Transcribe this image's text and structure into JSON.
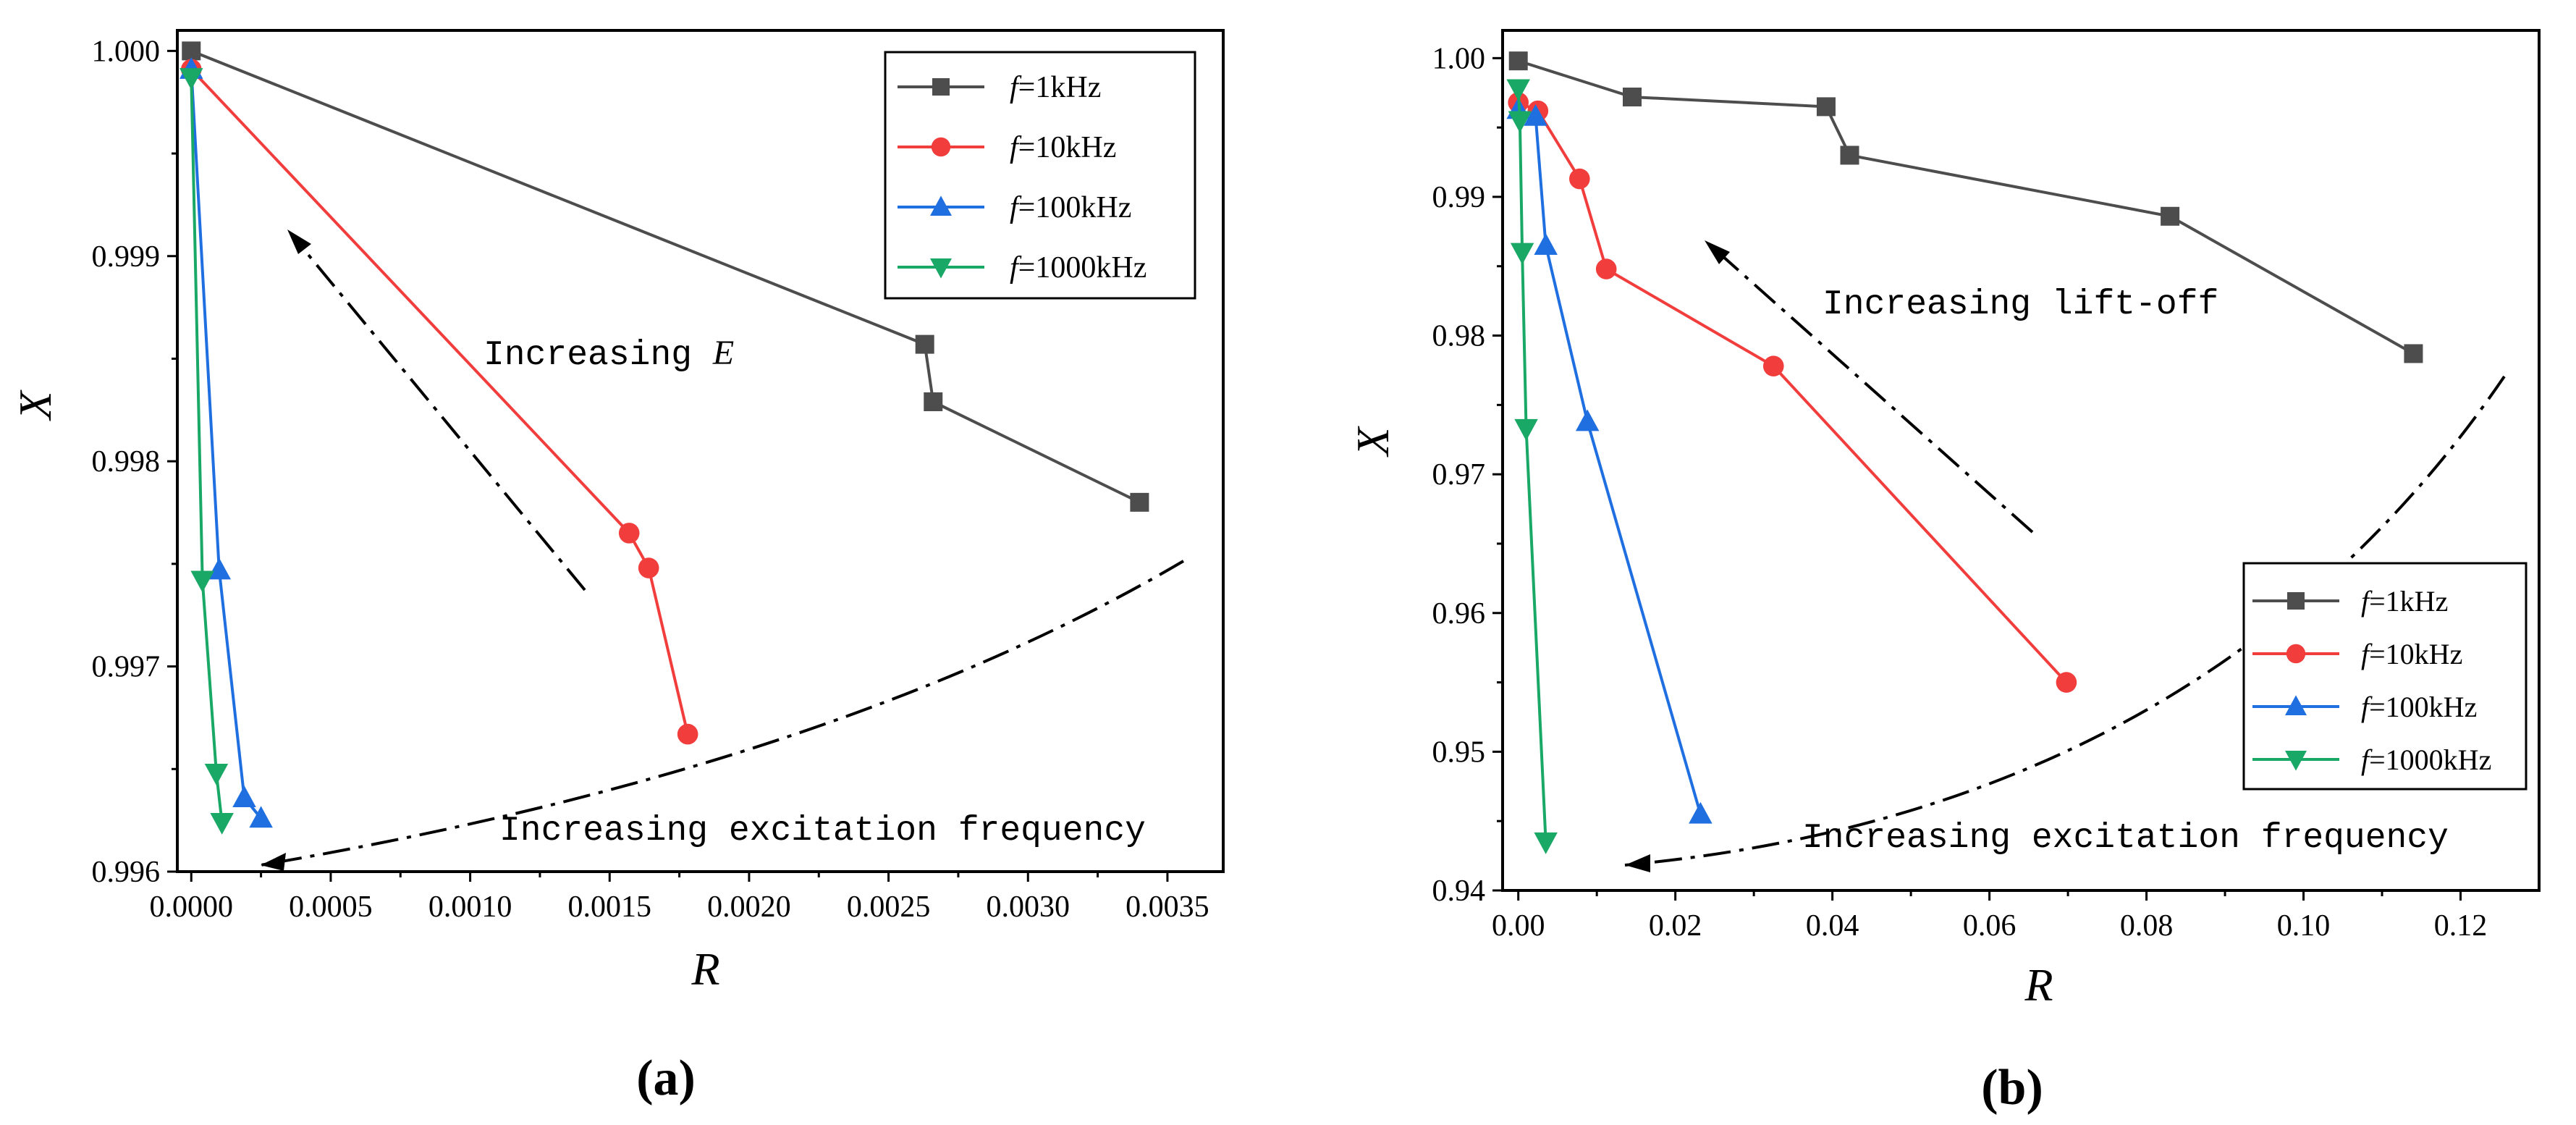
{
  "chart_data": [
    {
      "type": "line",
      "panel_label": "(a)",
      "xlabel": "R",
      "ylabel": "X",
      "xlim": [
        -5e-05,
        0.0037
      ],
      "ylim": [
        0.996,
        1.0001
      ],
      "xticks": [
        0.0,
        0.0005,
        0.001,
        0.0015,
        0.002,
        0.0025,
        0.003,
        0.0035
      ],
      "xtick_labels": [
        "0.0000",
        "0.0005",
        "0.0010",
        "0.0015",
        "0.0020",
        "0.0025",
        "0.0030",
        "0.0035"
      ],
      "yticks": [
        0.996,
        0.997,
        0.998,
        0.999,
        1.0
      ],
      "ytick_labels": [
        "0.996",
        "0.997",
        "0.998",
        "0.999",
        "1.000"
      ],
      "legend_position": "top-right",
      "series": [
        {
          "name": "1kHz",
          "color": "#4d4d4d",
          "marker": "square",
          "x": [
            0.0,
            0.00263,
            0.00266,
            0.0034
          ],
          "y": [
            1.0,
            0.99857,
            0.99829,
            0.9978
          ]
        },
        {
          "name": "10kHz",
          "color": "#f23d3d",
          "marker": "circle",
          "x": [
            0.0,
            0.00157,
            0.00164,
            0.00178
          ],
          "y": [
            0.99991,
            0.99765,
            0.99748,
            0.99667
          ]
        },
        {
          "name": "100kHz",
          "color": "#1f6fe0",
          "marker": "triangle-up",
          "x": [
            0.0,
            0.0001,
            0.00019,
            0.00025
          ],
          "y": [
            0.99991,
            0.99747,
            0.99636,
            0.99626
          ]
        },
        {
          "name": "1000kHz",
          "color": "#19a866",
          "marker": "triangle-down",
          "x": [
            0.0,
            4e-05,
            9e-05,
            0.00011
          ],
          "y": [
            0.99987,
            0.99742,
            0.99648,
            0.99624
          ]
        }
      ],
      "annotations": [
        {
          "text_pre": "Increasing ",
          "text_italic": "E",
          "arrow": "straight",
          "x": 0.001,
          "y": 0.9988
        },
        {
          "text": "Increasing excitation frequency",
          "arrow": "curved",
          "x": 0.0021,
          "y": 0.99625
        }
      ]
    },
    {
      "type": "line",
      "panel_label": "(b)",
      "xlabel": "R",
      "ylabel": "X",
      "xlim": [
        -0.002,
        0.13
      ],
      "ylim": [
        0.94,
        1.002
      ],
      "xticks": [
        0.0,
        0.02,
        0.04,
        0.06,
        0.08,
        0.1,
        0.12
      ],
      "xtick_labels": [
        "0.00",
        "0.02",
        "0.04",
        "0.06",
        "0.08",
        "0.10",
        "0.12"
      ],
      "yticks": [
        0.94,
        0.95,
        0.96,
        0.97,
        0.98,
        0.99,
        1.0
      ],
      "ytick_labels": [
        "0.94",
        "0.95",
        "0.96",
        "0.97",
        "0.98",
        "0.99",
        "1.00"
      ],
      "legend_position": "center-right",
      "series": [
        {
          "name": "1kHz",
          "color": "#4d4d4d",
          "marker": "square",
          "x": [
            0.0,
            0.0145,
            0.0392,
            0.0422,
            0.083,
            0.114
          ],
          "y": [
            0.9998,
            0.9972,
            0.9965,
            0.993,
            0.9886,
            0.9787
          ]
        },
        {
          "name": "10kHz",
          "color": "#f23d3d",
          "marker": "circle",
          "x": [
            0.0,
            0.0025,
            0.0078,
            0.0112,
            0.0325,
            0.0698
          ],
          "y": [
            0.9968,
            0.9962,
            0.9913,
            0.9848,
            0.9778,
            0.955
          ]
        },
        {
          "name": "100kHz",
          "color": "#1f6fe0",
          "marker": "triangle-up",
          "x": [
            0.0,
            0.0022,
            0.0035,
            0.0088,
            0.0232
          ],
          "y": [
            0.9963,
            0.9958,
            0.9865,
            0.9738,
            0.9455
          ]
        },
        {
          "name": "1000kHz",
          "color": "#19a866",
          "marker": "triangle-down",
          "x": [
            0.0,
            0.0002,
            0.0005,
            0.001,
            0.0035
          ],
          "y": [
            0.9978,
            0.9955,
            0.986,
            0.9733,
            0.9435
          ]
        }
      ],
      "annotations": [
        {
          "text": "Increasing lift-off",
          "arrow": "straight",
          "x": 0.072,
          "y": 0.982
        },
        {
          "text": "Increasing excitation frequency",
          "arrow": "curved",
          "x": 0.062,
          "y": 0.9432
        }
      ]
    }
  ],
  "legend_prefix": "f",
  "legend_equals": "=",
  "axis_color": "#000000"
}
